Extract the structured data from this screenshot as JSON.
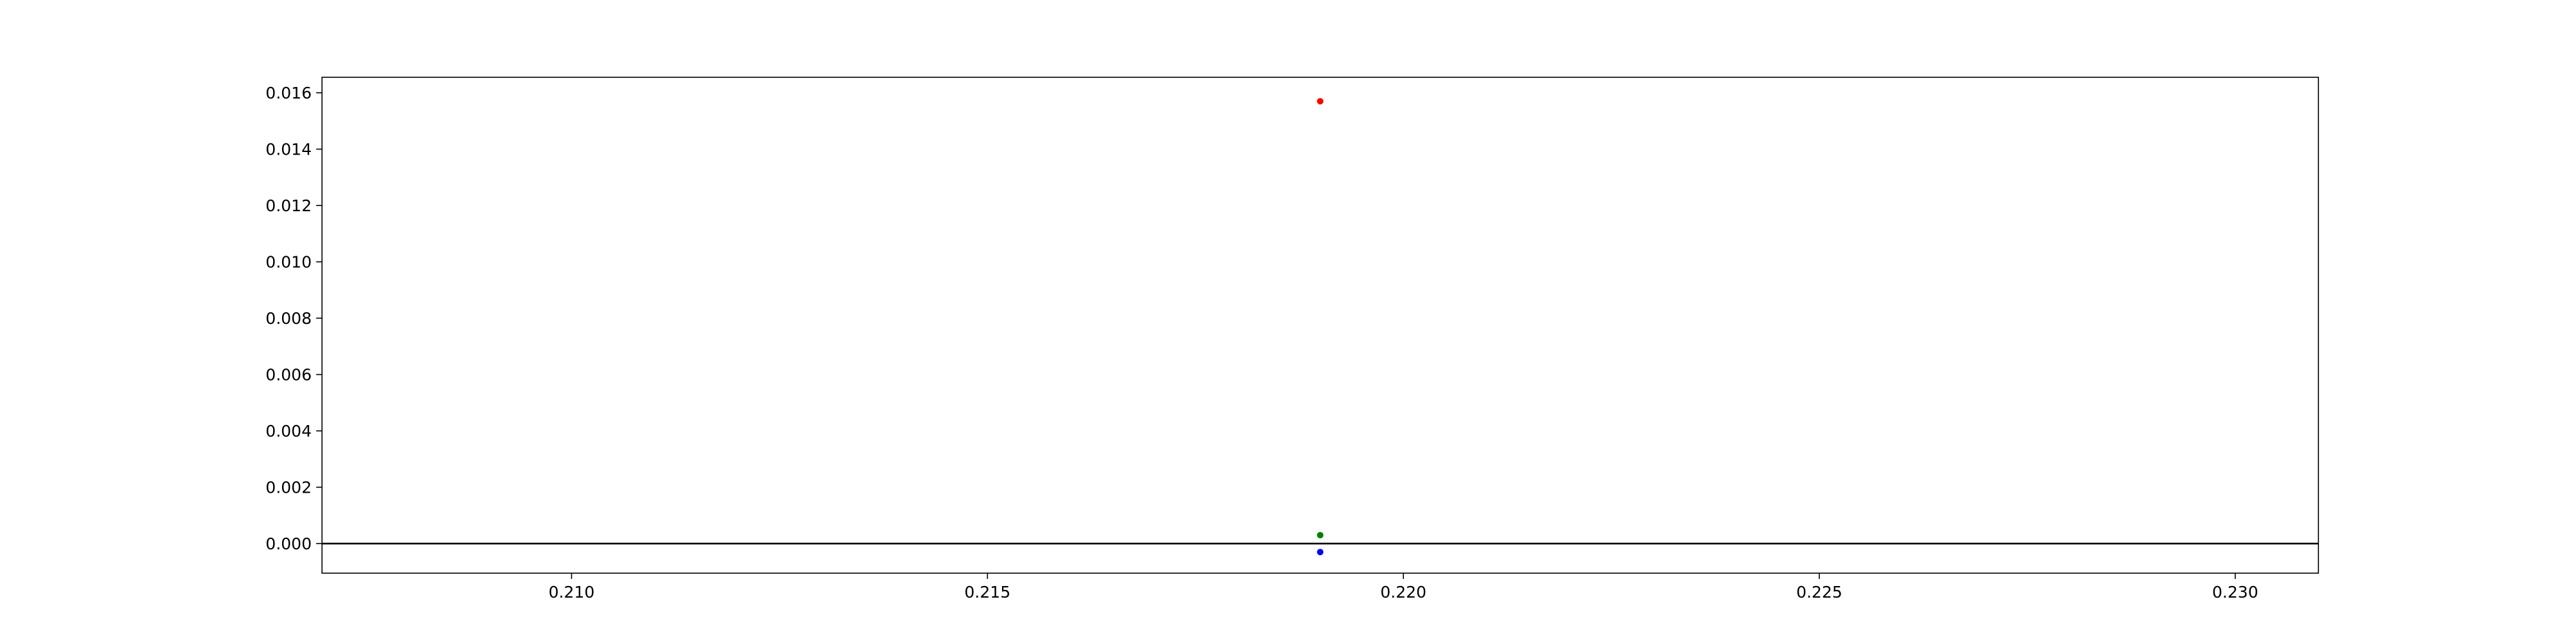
{
  "chart_data": {
    "type": "scatter",
    "title": "",
    "xlabel": "",
    "ylabel": "",
    "xlim": [
      0.207,
      0.231
    ],
    "ylim": [
      -0.00105,
      0.01655
    ],
    "x_ticks": [
      0.21,
      0.215,
      0.22,
      0.225,
      0.23
    ],
    "x_tick_labels": [
      "0.210",
      "0.215",
      "0.220",
      "0.225",
      "0.230"
    ],
    "y_ticks": [
      0.0,
      0.002,
      0.004,
      0.006,
      0.008,
      0.01,
      0.012,
      0.014,
      0.016
    ],
    "y_tick_labels": [
      "0.000",
      "0.002",
      "0.004",
      "0.006",
      "0.008",
      "0.010",
      "0.012",
      "0.014",
      "0.016"
    ],
    "grid": false,
    "legend": false,
    "reference_lines": [
      {
        "orientation": "horizontal",
        "y": 0,
        "color": "#000000"
      }
    ],
    "series": [
      {
        "color": "#ff0000",
        "points": [
          {
            "x": 0.219,
            "y": 0.0157
          }
        ]
      },
      {
        "color": "#008000",
        "points": [
          {
            "x": 0.219,
            "y": 0.0003
          }
        ]
      },
      {
        "color": "#0000ff",
        "points": [
          {
            "x": 0.219,
            "y": -0.0003
          }
        ]
      }
    ]
  }
}
